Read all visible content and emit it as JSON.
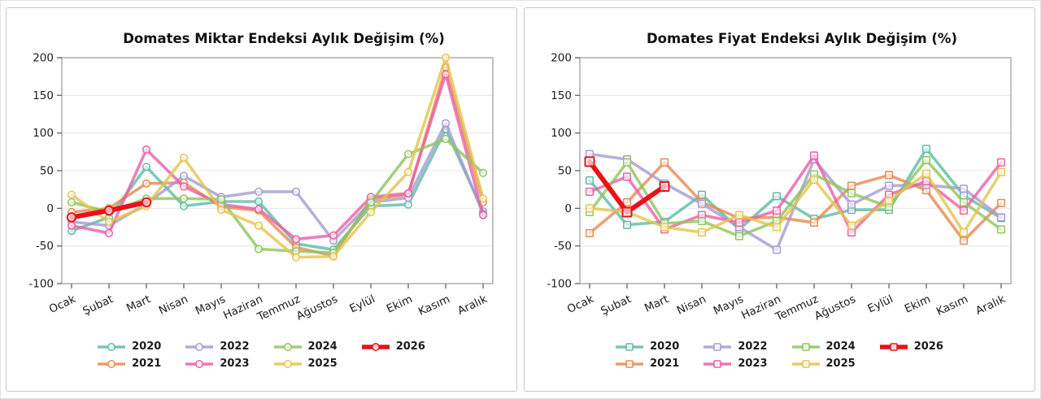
{
  "chart_data": [
    {
      "type": "line",
      "title": "Domates Miktar Endeksi Aylık Değişim (%)",
      "marker": "circle",
      "grid": true,
      "legend_position": "bottom",
      "ylim": [
        -100,
        200
      ],
      "y_ticks": [
        200,
        150,
        100,
        50,
        0,
        -50,
        -100
      ],
      "categories": [
        "Ocak",
        "Şubat",
        "Mart",
        "Nisan",
        "Mayıs",
        "Haziran",
        "Temmuz",
        "Ağustos",
        "Eylül",
        "Ekim",
        "Kasım",
        "Aralık"
      ],
      "series": [
        {
          "name": "2020",
          "color": "#5fbca6",
          "values": [
            -30,
            -12,
            55,
            3,
            9,
            9,
            -47,
            -55,
            3,
            5,
            105,
            -4
          ]
        },
        {
          "name": "2021",
          "color": "#e78a4e",
          "values": [
            -5,
            0,
            33,
            34,
            2,
            -3,
            -52,
            -63,
            12,
            18,
            187,
            8
          ]
        },
        {
          "name": "2022",
          "color": "#a69bd0",
          "values": [
            -18,
            -23,
            6,
            43,
            15,
            22,
            22,
            -43,
            8,
            14,
            113,
            -7
          ]
        },
        {
          "name": "2023",
          "color": "#ea5fa5",
          "values": [
            -23,
            -33,
            78,
            29,
            5,
            -1,
            -41,
            -36,
            15,
            20,
            178,
            -9
          ]
        },
        {
          "name": "2024",
          "color": "#90c45f",
          "values": [
            8,
            -5,
            13,
            13,
            12,
            -54,
            -57,
            -59,
            8,
            72,
            92,
            47
          ]
        },
        {
          "name": "2025",
          "color": "#e3c44d",
          "values": [
            18,
            -18,
            3,
            67,
            -2,
            -23,
            -65,
            -64,
            -5,
            48,
            200,
            13
          ]
        },
        {
          "name": "2026",
          "color": "#e8121a",
          "values": [
            -12,
            -3,
            8,
            null,
            null,
            null,
            null,
            null,
            null,
            null,
            null,
            null
          ],
          "emphasis": true
        }
      ]
    },
    {
      "type": "line",
      "title": "Domates Fiyat Endeksi Aylık Değişim (%)",
      "marker": "square",
      "grid": true,
      "legend_position": "bottom",
      "ylim": [
        -100,
        200
      ],
      "y_ticks": [
        200,
        150,
        100,
        50,
        0,
        -50,
        -100
      ],
      "categories": [
        "Ocak",
        "Şubat",
        "Mart",
        "Nisan",
        "Mayıs",
        "Haziran",
        "Temmuz",
        "Ağustos",
        "Eylül",
        "Ekim",
        "Kasım",
        "Aralık"
      ],
      "series": [
        {
          "name": "2020",
          "color": "#5fbca6",
          "values": [
            37,
            -22,
            -18,
            18,
            -28,
            16,
            -14,
            -2,
            -2,
            79,
            17,
            -13
          ]
        },
        {
          "name": "2021",
          "color": "#e78a4e",
          "values": [
            -33,
            8,
            61,
            8,
            -13,
            -12,
            -19,
            30,
            44,
            24,
            -43,
            7
          ]
        },
        {
          "name": "2022",
          "color": "#a69bd0",
          "values": [
            72,
            65,
            33,
            6,
            -25,
            -55,
            65,
            5,
            30,
            31,
            26,
            -12
          ]
        },
        {
          "name": "2023",
          "color": "#ea5fa5",
          "values": [
            22,
            42,
            -28,
            -9,
            -19,
            -3,
            70,
            -32,
            18,
            36,
            -3,
            61
          ]
        },
        {
          "name": "2024",
          "color": "#90c45f",
          "values": [
            -5,
            61,
            -20,
            -17,
            -37,
            -17,
            45,
            20,
            2,
            64,
            8,
            -28
          ]
        },
        {
          "name": "2025",
          "color": "#e3c44d",
          "values": [
            0,
            -5,
            -25,
            -32,
            -9,
            -25,
            38,
            -23,
            10,
            46,
            -32,
            48
          ]
        },
        {
          "name": "2026",
          "color": "#e8121a",
          "values": [
            62,
            -5,
            29,
            null,
            null,
            null,
            null,
            null,
            null,
            null,
            null,
            null
          ],
          "emphasis": true
        }
      ]
    }
  ],
  "style_colors": {
    "gridline": "#e8e8e8",
    "spine": "#999999",
    "tick": "#555555",
    "text": "#1c1c1c"
  }
}
